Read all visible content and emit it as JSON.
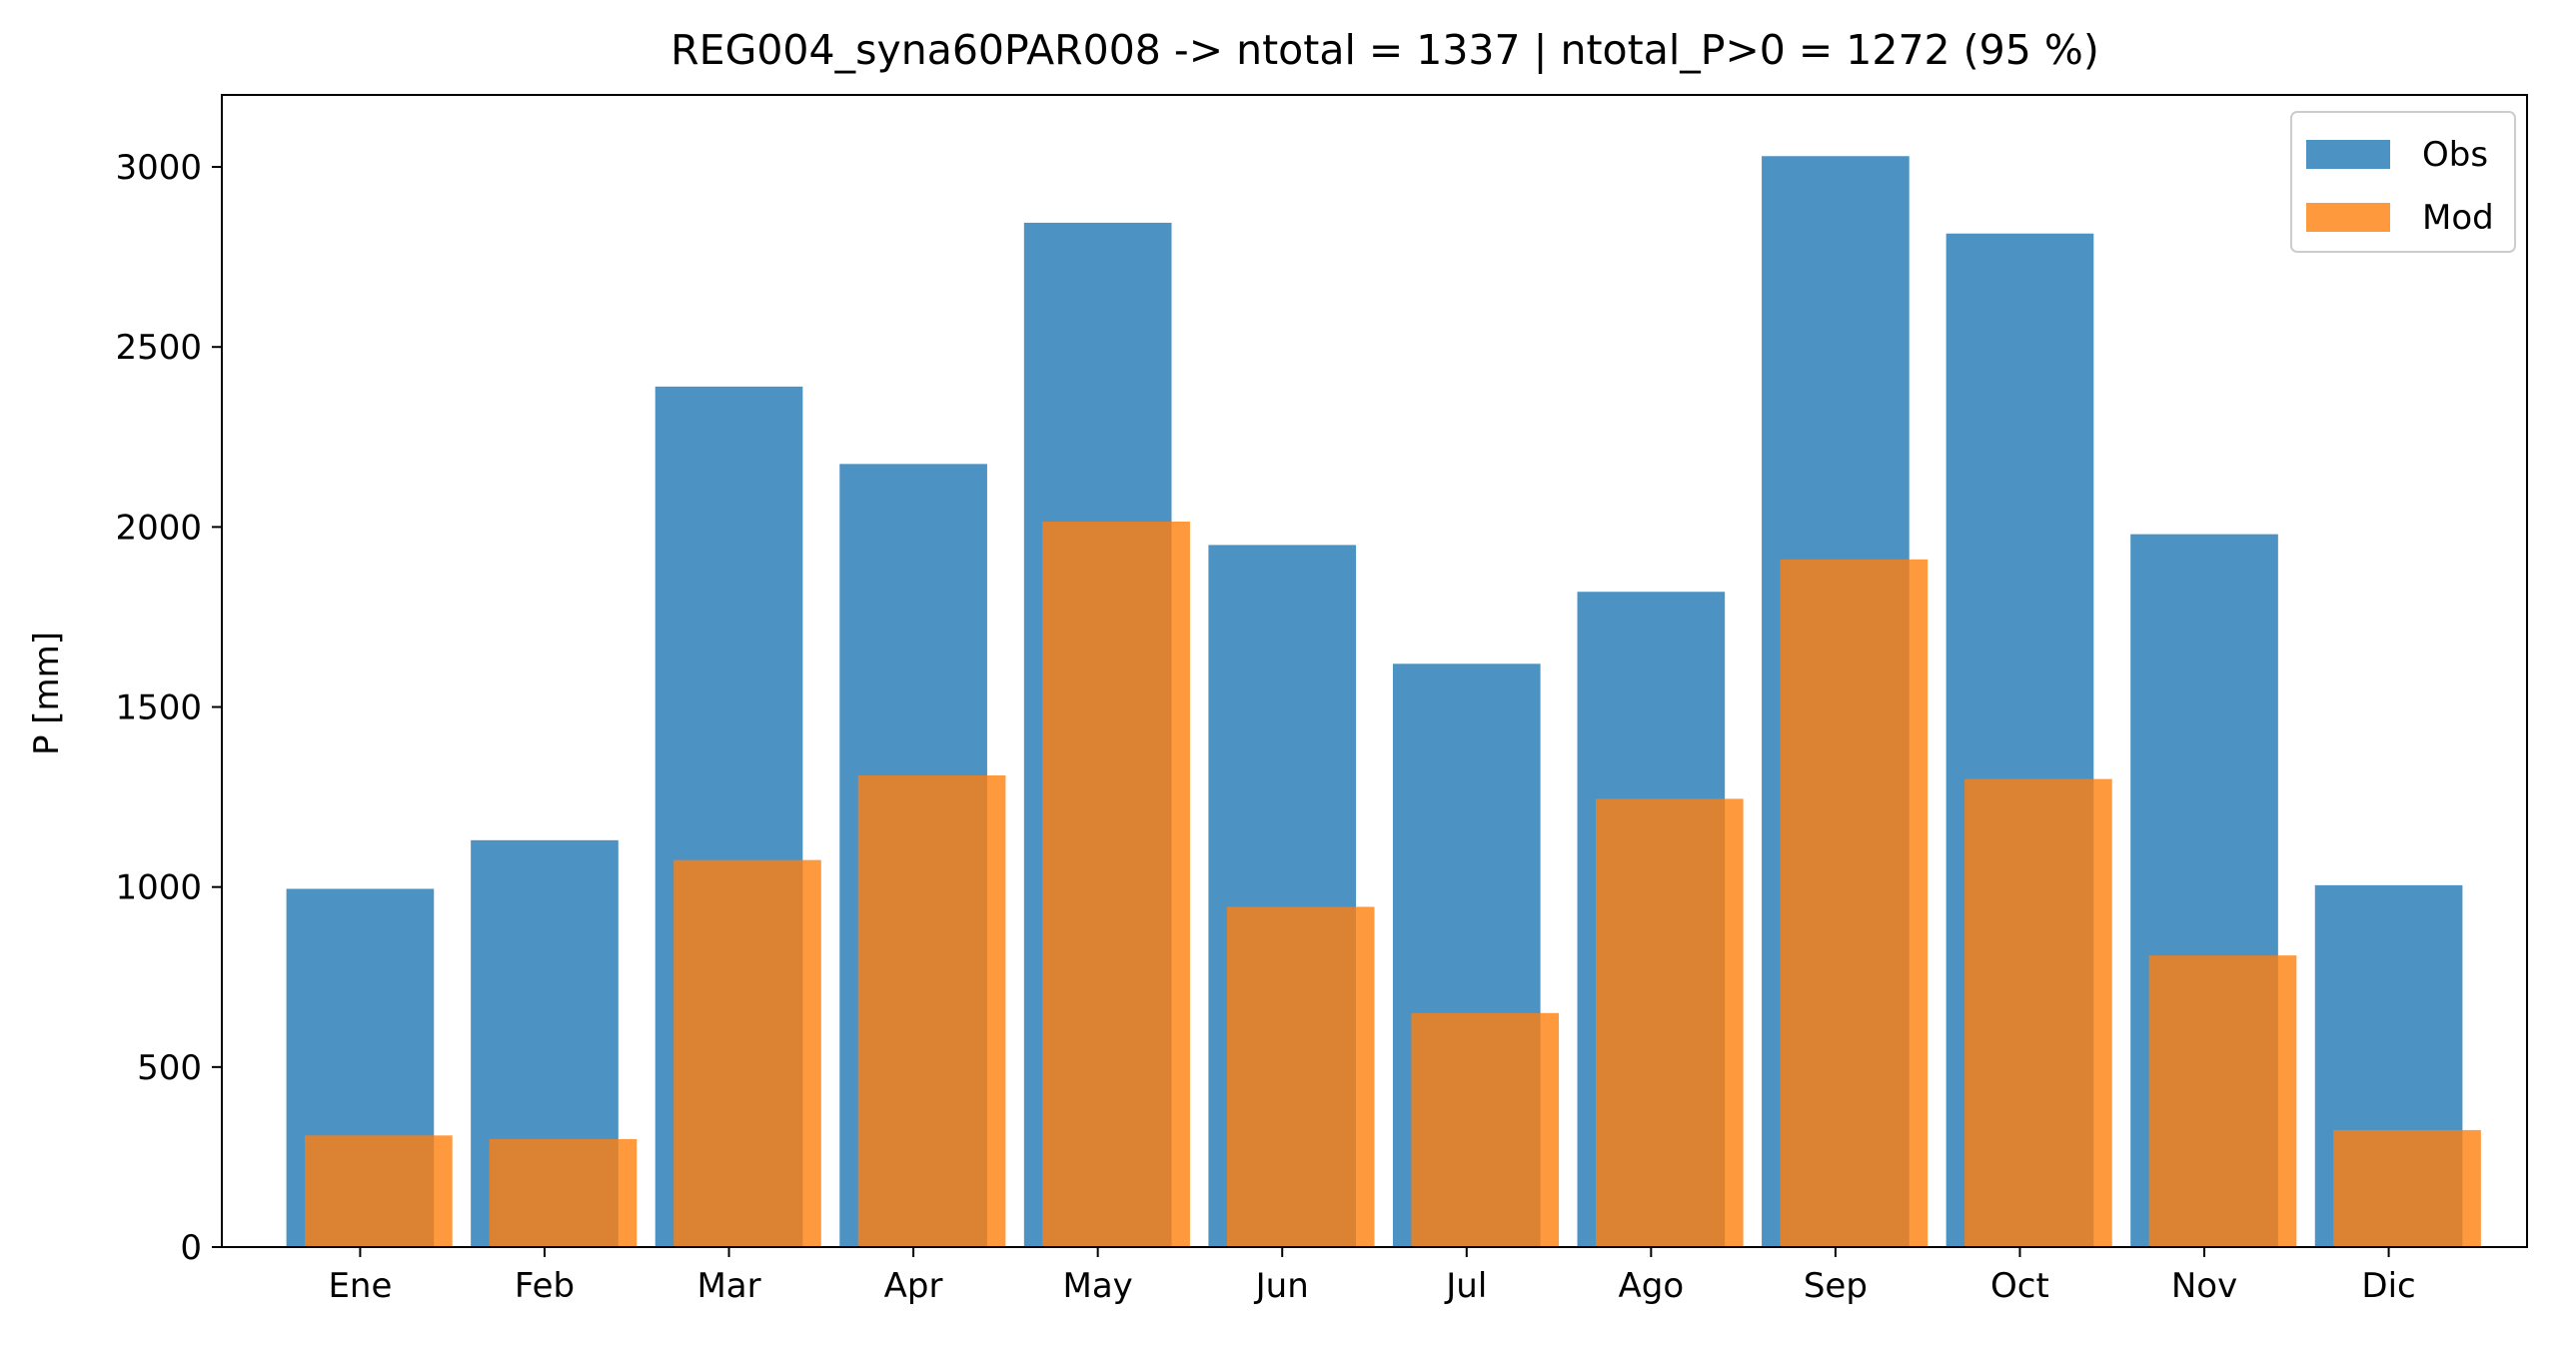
{
  "chart_data": {
    "type": "bar",
    "title": "REG004_syna60PAR008 -> ntotal = 1337 | ntotal_P>0 = 1272 (95 %)",
    "xlabel": "",
    "ylabel": "P [mm]",
    "categories": [
      "Ene",
      "Feb",
      "Mar",
      "Apr",
      "May",
      "Jun",
      "Jul",
      "Ago",
      "Sep",
      "Oct",
      "Nov",
      "Dic"
    ],
    "ylim": [
      0,
      3200
    ],
    "yticks": [
      0,
      500,
      1000,
      1500,
      2000,
      2500,
      3000
    ],
    "grid": false,
    "legend_position": "top-right",
    "series": [
      {
        "name": "Obs",
        "color": "#1f77b4",
        "opacity": 0.8,
        "values": [
          995,
          1130,
          2390,
          2175,
          2845,
          1950,
          1620,
          1820,
          3030,
          2815,
          1980,
          1005
        ]
      },
      {
        "name": "Mod",
        "color": "#ff7f0e",
        "opacity": 0.8,
        "values": [
          310,
          300,
          1075,
          1310,
          2015,
          945,
          650,
          1245,
          1910,
          1300,
          810,
          325
        ]
      }
    ]
  }
}
